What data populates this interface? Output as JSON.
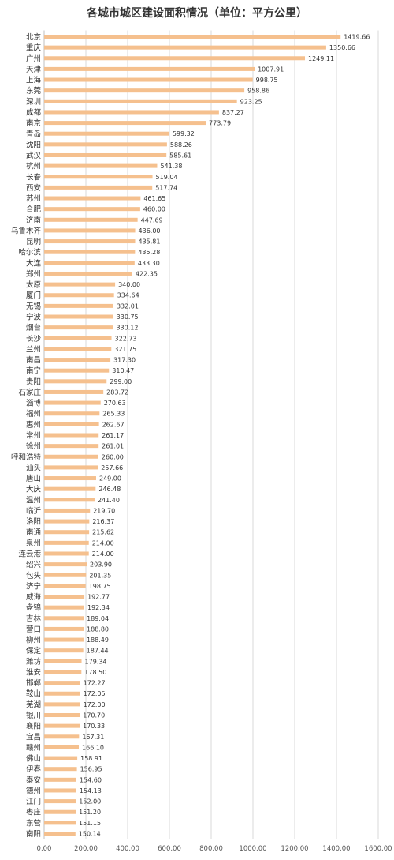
{
  "chart_data": {
    "type": "bar",
    "orientation": "horizontal",
    "title": "各城市城区建设面积情况（单位：平方公里）",
    "bar_color": "#F5C08E",
    "grid": true,
    "xlim": [
      0,
      1600
    ],
    "x_ticks": [
      "0.00",
      "200.00",
      "400.00",
      "600.00",
      "800.00",
      "1000.00",
      "1200.00",
      "1400.00",
      "1600.00"
    ],
    "categories": [
      "北京",
      "重庆",
      "广州",
      "天津",
      "上海",
      "东莞",
      "深圳",
      "成都",
      "南京",
      "青岛",
      "沈阳",
      "武汉",
      "杭州",
      "长春",
      "西安",
      "苏州",
      "合肥",
      "济南",
      "乌鲁木齐",
      "昆明",
      "哈尔滨",
      "大连",
      "郑州",
      "太原",
      "厦门",
      "无锡",
      "宁波",
      "烟台",
      "长沙",
      "兰州",
      "南昌",
      "南宁",
      "贵阳",
      "石家庄",
      "淄博",
      "福州",
      "惠州",
      "常州",
      "徐州",
      "呼和浩特",
      "汕头",
      "唐山",
      "大庆",
      "温州",
      "临沂",
      "洛阳",
      "南通",
      "泉州",
      "连云港",
      "绍兴",
      "包头",
      "济宁",
      "威海",
      "盘锦",
      "吉林",
      "营口",
      "柳州",
      "保定",
      "潍坊",
      "淮安",
      "邯郸",
      "鞍山",
      "芜湖",
      "银川",
      "襄阳",
      "宜昌",
      "赣州",
      "佛山",
      "伊春",
      "泰安",
      "德州",
      "江门",
      "枣庄",
      "东营",
      "南阳"
    ],
    "values": [
      1419.66,
      1350.66,
      1249.11,
      1007.91,
      998.75,
      958.86,
      923.25,
      837.27,
      773.79,
      599.32,
      588.26,
      585.61,
      541.38,
      519.04,
      517.74,
      461.65,
      460.0,
      447.69,
      436.0,
      435.81,
      435.28,
      433.3,
      422.35,
      340.0,
      334.64,
      332.01,
      330.75,
      330.12,
      322.73,
      321.75,
      317.3,
      310.47,
      299.0,
      283.72,
      270.63,
      265.33,
      262.67,
      261.17,
      261.01,
      260.0,
      257.66,
      249.0,
      246.48,
      241.4,
      219.7,
      216.37,
      215.62,
      214.0,
      214.0,
      203.9,
      201.35,
      198.75,
      192.77,
      192.34,
      189.04,
      188.8,
      188.49,
      187.44,
      179.34,
      178.5,
      172.27,
      172.05,
      172.0,
      170.7,
      170.33,
      167.31,
      166.1,
      158.91,
      156.95,
      154.6,
      154.13,
      152.0,
      151.2,
      151.15,
      150.14
    ],
    "value_labels": [
      "1419.66",
      "1350.66",
      "1249.11",
      "1007.91",
      "998.75",
      "958.86",
      "923.25",
      "837.27",
      "773.79",
      "599.32",
      "588.26",
      "585.61",
      "541.38",
      "519.04",
      "517.74",
      "461.65",
      "460.00",
      "447.69",
      "436.00",
      "435.81",
      "435.28",
      "433.30",
      "422.35",
      "340.00",
      "334.64",
      "332.01",
      "330.75",
      "330.12",
      "322.73",
      "321.75",
      "317.30",
      "310.47",
      "299.00",
      "283.72",
      "270.63",
      "265.33",
      "262.67",
      "261.17",
      "261.01",
      "260.00",
      "257.66",
      "249.00",
      "246.48",
      "241.40",
      "219.70",
      "216.37",
      "215.62",
      "214.00",
      "214.00",
      "203.90",
      "201.35",
      "198.75",
      "192.77",
      "192.34",
      "189.04",
      "188.80",
      "188.49",
      "187.44",
      "179.34",
      "178.50",
      "172.27",
      "172.05",
      "172.00",
      "170.70",
      "170.33",
      "167.31",
      "166.10",
      "158.91",
      "156.95",
      "154.60",
      "154.13",
      "152.00",
      "151.20",
      "151.15",
      "150.14"
    ]
  }
}
